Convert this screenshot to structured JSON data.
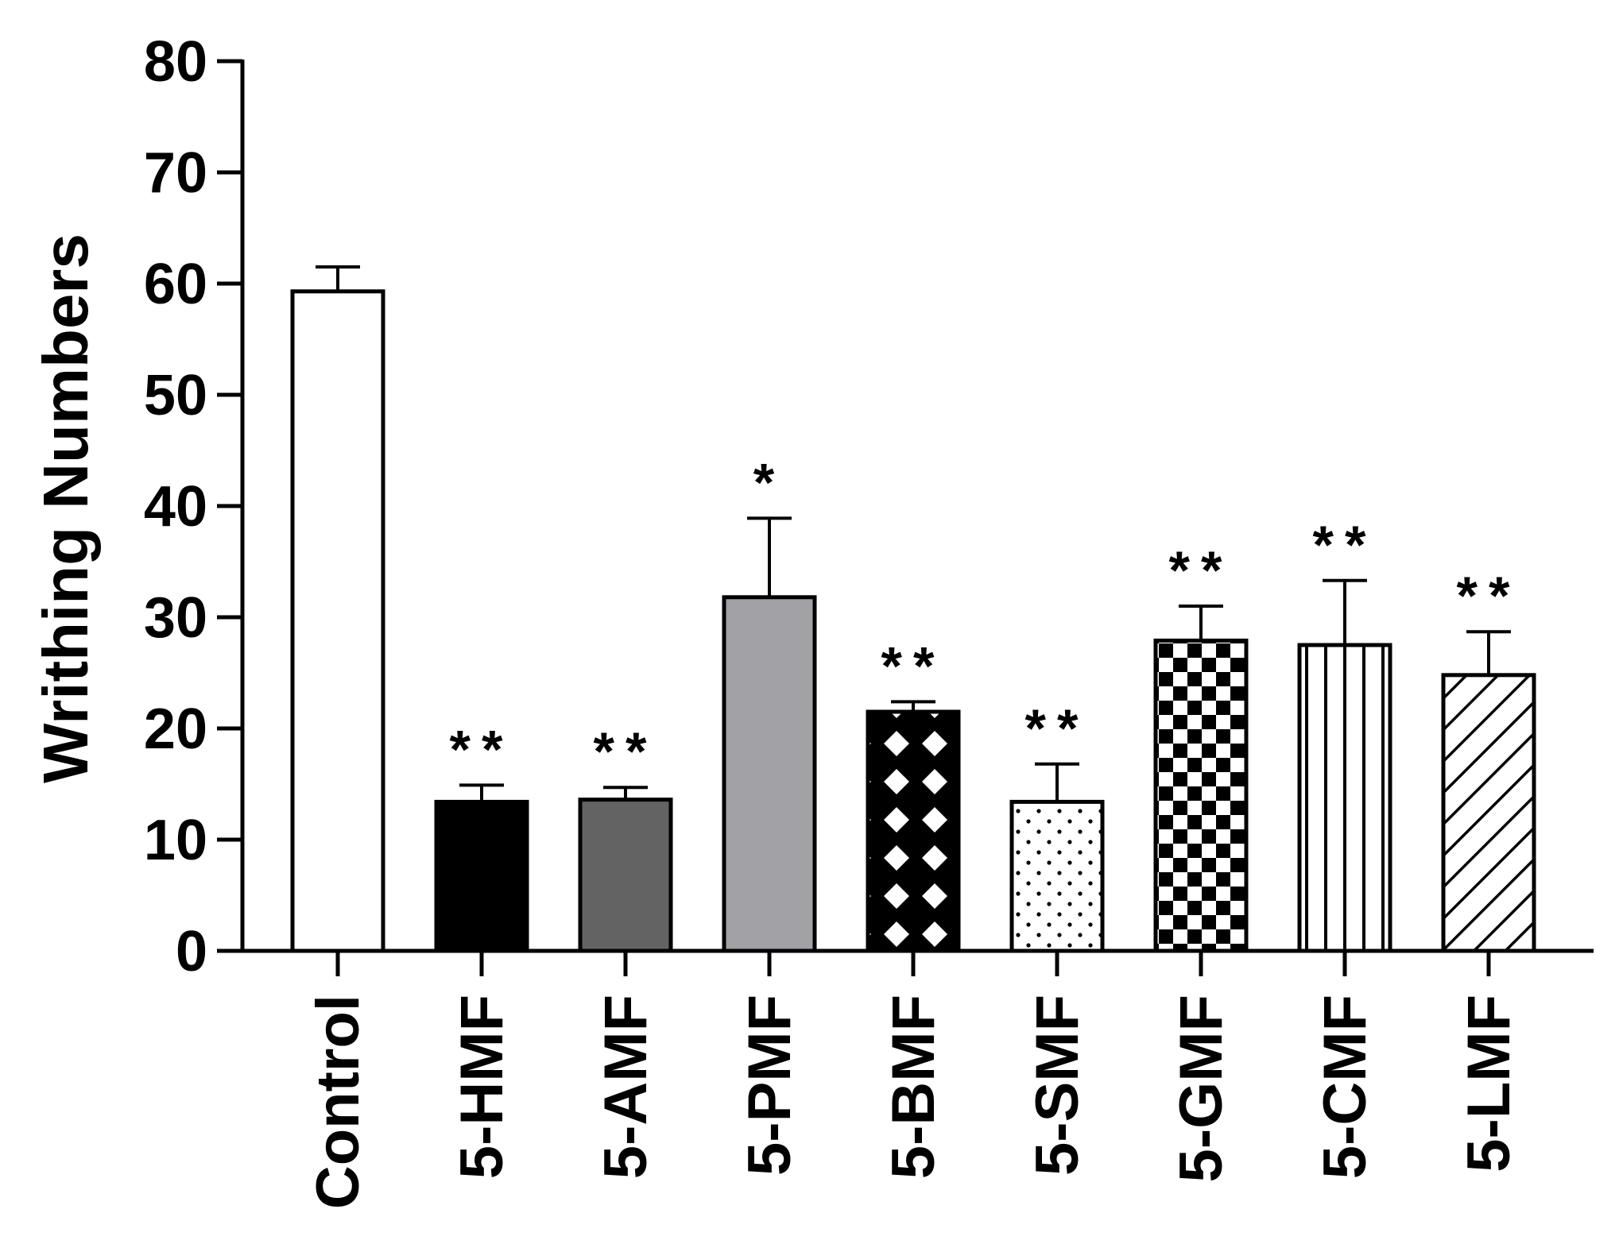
{
  "chart_data": {
    "type": "bar",
    "title": "",
    "xlabel": "",
    "ylabel": "Writhing Numbers",
    "ylim": [
      0,
      80
    ],
    "yticks": [
      0,
      10,
      20,
      30,
      40,
      50,
      60,
      70,
      80
    ],
    "grid": false,
    "legend": "none",
    "categories": [
      "Control",
      "5-HMF",
      "5-AMF",
      "5-PMF",
      "5-BMF",
      "5-SMF",
      "5-GMF",
      "5-CMF",
      "5-LMF"
    ],
    "values": [
      59.3,
      13.4,
      13.6,
      31.8,
      21.5,
      13.4,
      27.9,
      27.5,
      24.8
    ],
    "error": [
      2.2,
      1.5,
      1.1,
      7.1,
      0.9,
      3.4,
      3.1,
      5.8,
      3.9
    ],
    "significance": [
      "",
      "**",
      "**",
      "*",
      "**",
      "**",
      "**",
      "**",
      "**"
    ],
    "bar_fills": [
      "white",
      "black",
      "dark-gray",
      "light-gray",
      "diamond-lattice",
      "dots",
      "checkerboard",
      "vertical-stripes",
      "diagonal-hatch"
    ],
    "colors": {
      "black": "#000000",
      "dark_gray": "#636363",
      "light_gray": "#a2a1a6",
      "white": "#ffffff"
    }
  }
}
